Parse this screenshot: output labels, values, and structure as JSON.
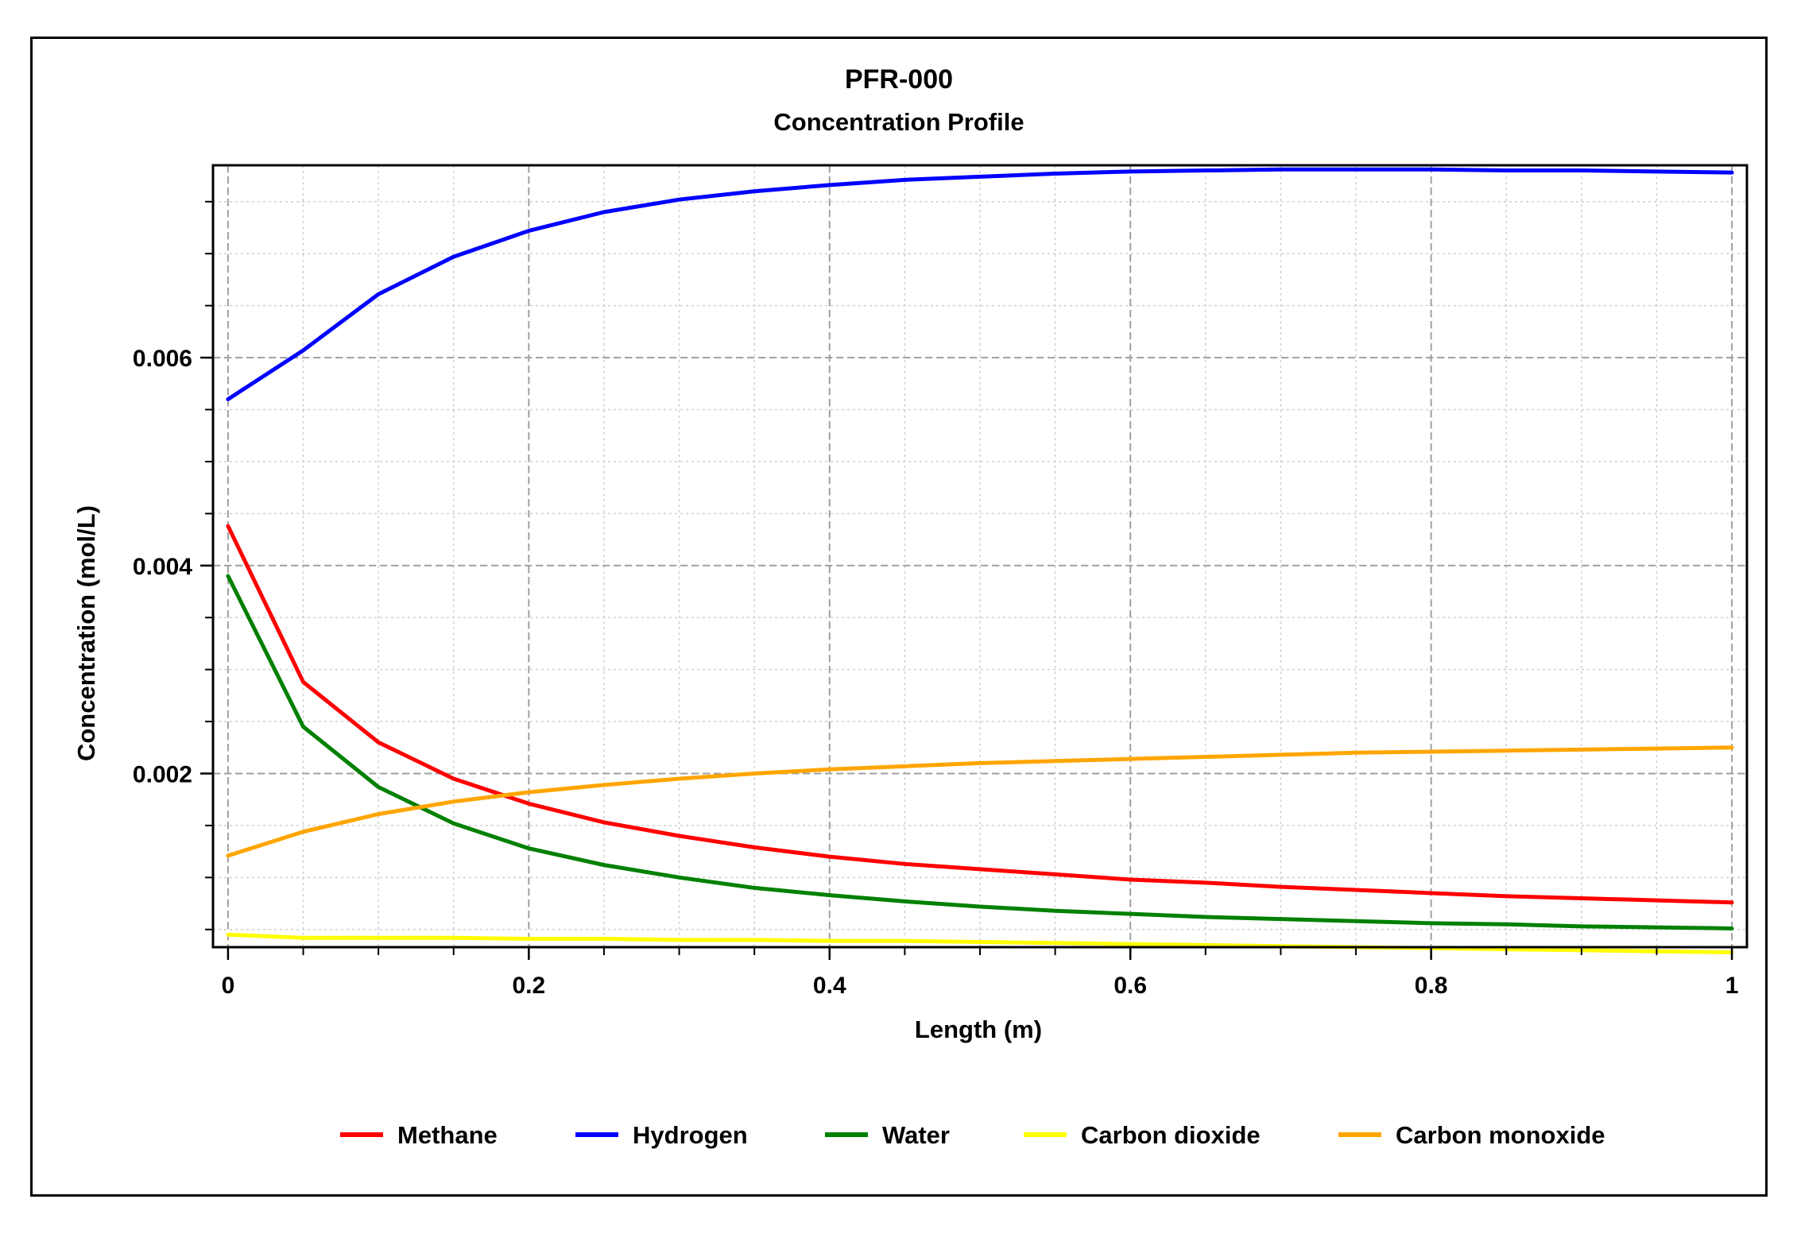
{
  "chart_data": {
    "type": "line",
    "title": "PFR-000",
    "subtitle": "Concentration Profile",
    "xlabel": "Length (m)",
    "ylabel": "Concentration (mol/L)",
    "xlim": [
      -0.01,
      1.01
    ],
    "ylim": [
      0.00033,
      0.00785
    ],
    "x_ticks": [
      0,
      0.2,
      0.4,
      0.6,
      0.8,
      1
    ],
    "x_tick_labels": [
      "0",
      "0.2",
      "0.4",
      "0.6",
      "0.8",
      "1"
    ],
    "y_ticks": [
      0.002,
      0.004,
      0.006
    ],
    "y_tick_labels": [
      "0.002",
      "0.004",
      "0.006"
    ],
    "grid": true,
    "legend_position": "bottom",
    "x": [
      0,
      0.05,
      0.1,
      0.15,
      0.2,
      0.25,
      0.3,
      0.35,
      0.4,
      0.45,
      0.5,
      0.55,
      0.6,
      0.65,
      0.7,
      0.75,
      0.8,
      0.85,
      0.9,
      0.95,
      1
    ],
    "series": [
      {
        "name": "Methane",
        "color": "#ff0000",
        "values": [
          0.00438,
          0.00288,
          0.0023,
          0.00195,
          0.00171,
          0.00153,
          0.0014,
          0.00129,
          0.0012,
          0.00113,
          0.00108,
          0.00103,
          0.00098,
          0.00095,
          0.00091,
          0.00088,
          0.00085,
          0.00082,
          0.0008,
          0.00078,
          0.00076
        ]
      },
      {
        "name": "Hydrogen",
        "color": "#0000ff",
        "values": [
          0.0056,
          0.00607,
          0.00661,
          0.00697,
          0.00722,
          0.0074,
          0.00752,
          0.0076,
          0.00766,
          0.00771,
          0.00774,
          0.00777,
          0.00779,
          0.0078,
          0.00781,
          0.00781,
          0.00781,
          0.0078,
          0.0078,
          0.00779,
          0.00778
        ]
      },
      {
        "name": "Water",
        "color": "#008000",
        "values": [
          0.0039,
          0.00245,
          0.00187,
          0.00152,
          0.00128,
          0.00112,
          0.001,
          0.0009,
          0.00083,
          0.00077,
          0.00072,
          0.00068,
          0.00065,
          0.00062,
          0.0006,
          0.00058,
          0.00056,
          0.00055,
          0.00053,
          0.00052,
          0.00051
        ]
      },
      {
        "name": "Carbon dioxide",
        "color": "#ffff00",
        "values": [
          0.00045,
          0.00042,
          0.00042,
          0.00042,
          0.00041,
          0.00041,
          0.0004,
          0.0004,
          0.00039,
          0.00039,
          0.00038,
          0.00037,
          0.00036,
          0.00035,
          0.00034,
          0.00033,
          0.00032,
          0.00031,
          0.0003,
          0.00029,
          0.00028
        ]
      },
      {
        "name": "Carbon monoxide",
        "color": "#ffa500",
        "values": [
          0.00121,
          0.00144,
          0.00161,
          0.00173,
          0.00182,
          0.00189,
          0.00195,
          0.002,
          0.00204,
          0.00207,
          0.0021,
          0.00212,
          0.00214,
          0.00216,
          0.00218,
          0.0022,
          0.00221,
          0.00222,
          0.00223,
          0.00224,
          0.00225
        ]
      }
    ]
  }
}
